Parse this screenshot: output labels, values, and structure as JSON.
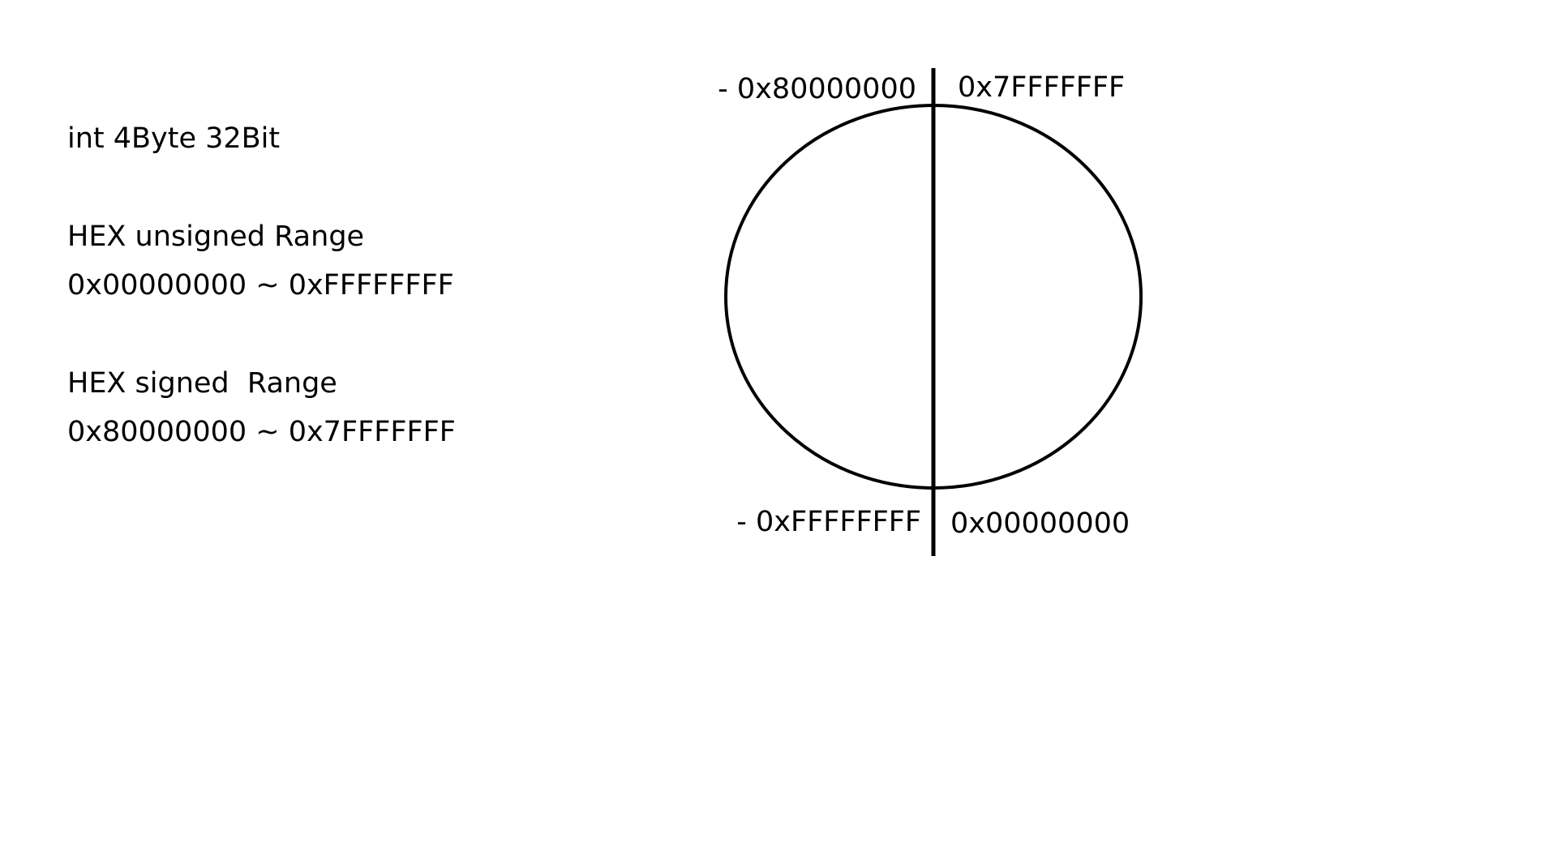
{
  "notes": {
    "int_size": "int 4Byte 32Bit",
    "unsigned_heading": "HEX unsigned Range",
    "unsigned_range": "0x00000000 ~ 0xFFFFFFFF",
    "signed_heading": "HEX signed  Range",
    "signed_range": "0x80000000 ~ 0x7FFFFFFF"
  },
  "circle_labels": {
    "top_left": "- 0x80000000",
    "top_right": "0x7FFFFFFF",
    "bottom_left": "- 0xFFFFFFFF",
    "bottom_right": "0x00000000"
  },
  "colors": {
    "stroke": "#000000",
    "background": "#ffffff"
  }
}
